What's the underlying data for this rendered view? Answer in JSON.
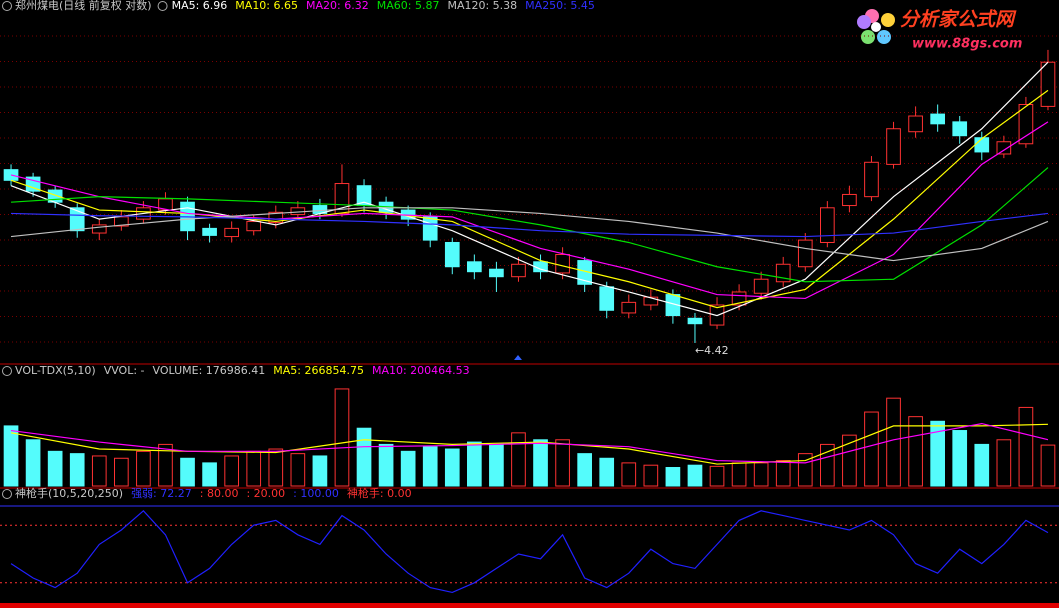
{
  "logo": {
    "title": "分析家公式网",
    "url": "www.88gs.com"
  },
  "chart_data": [
    {
      "type": "candlestick",
      "scale": "log",
      "ylim": [
        4.3,
        7.5
      ],
      "legend": [
        {
          "text": "郑州煤电(日线 前复权 对数)",
          "color": "#c8c8c8"
        },
        {
          "text": "MA5: 6.96",
          "color": "#ffffff"
        },
        {
          "text": "MA10: 6.65",
          "color": "#ffff00"
        },
        {
          "text": "MA20: 6.32",
          "color": "#ff00ff"
        },
        {
          "text": "MA60: 5.87",
          "color": "#00e000"
        },
        {
          "text": "MA120: 5.38",
          "color": "#c0c0c0"
        },
        {
          "text": "MA250: 5.45",
          "color": "#3030ff"
        }
      ],
      "up_color": "#ff3232",
      "down_color": "#54fcfc",
      "ohlc": [
        [
          5.85,
          5.9,
          5.7,
          5.75
        ],
        [
          5.78,
          5.82,
          5.6,
          5.65
        ],
        [
          5.66,
          5.7,
          5.5,
          5.55
        ],
        [
          5.5,
          5.54,
          5.24,
          5.3
        ],
        [
          5.28,
          5.4,
          5.22,
          5.35
        ],
        [
          5.34,
          5.48,
          5.3,
          5.42
        ],
        [
          5.4,
          5.56,
          5.36,
          5.5
        ],
        [
          5.48,
          5.64,
          5.44,
          5.58
        ],
        [
          5.55,
          5.6,
          5.22,
          5.3
        ],
        [
          5.32,
          5.36,
          5.2,
          5.26
        ],
        [
          5.25,
          5.38,
          5.2,
          5.32
        ],
        [
          5.3,
          5.44,
          5.26,
          5.38
        ],
        [
          5.37,
          5.52,
          5.32,
          5.46
        ],
        [
          5.44,
          5.56,
          5.4,
          5.5
        ],
        [
          5.52,
          5.58,
          5.4,
          5.45
        ],
        [
          5.45,
          5.9,
          5.42,
          5.72
        ],
        [
          5.7,
          5.76,
          5.46,
          5.52
        ],
        [
          5.55,
          5.6,
          5.4,
          5.46
        ],
        [
          5.48,
          5.52,
          5.34,
          5.4
        ],
        [
          5.42,
          5.46,
          5.16,
          5.22
        ],
        [
          5.2,
          5.24,
          4.94,
          5.0
        ],
        [
          5.04,
          5.1,
          4.9,
          4.96
        ],
        [
          4.98,
          5.04,
          4.8,
          4.92
        ],
        [
          4.92,
          5.08,
          4.88,
          5.02
        ],
        [
          5.04,
          5.1,
          4.9,
          4.96
        ],
        [
          4.95,
          5.16,
          4.9,
          5.1
        ],
        [
          5.05,
          5.08,
          4.8,
          4.86
        ],
        [
          4.84,
          4.88,
          4.6,
          4.66
        ],
        [
          4.64,
          4.78,
          4.6,
          4.72
        ],
        [
          4.7,
          4.82,
          4.66,
          4.76
        ],
        [
          4.78,
          4.82,
          4.56,
          4.62
        ],
        [
          4.6,
          4.64,
          4.42,
          4.56
        ],
        [
          4.55,
          4.76,
          4.52,
          4.7
        ],
        [
          4.7,
          4.86,
          4.66,
          4.8
        ],
        [
          4.79,
          4.96,
          4.74,
          4.9
        ],
        [
          4.88,
          5.08,
          4.84,
          5.02
        ],
        [
          5.0,
          5.28,
          4.96,
          5.22
        ],
        [
          5.2,
          5.56,
          5.16,
          5.5
        ],
        [
          5.52,
          5.7,
          5.46,
          5.62
        ],
        [
          5.6,
          5.98,
          5.56,
          5.92
        ],
        [
          5.9,
          6.32,
          5.86,
          6.25
        ],
        [
          6.22,
          6.48,
          6.16,
          6.38
        ],
        [
          6.4,
          6.5,
          6.22,
          6.3
        ],
        [
          6.32,
          6.38,
          6.1,
          6.18
        ],
        [
          6.16,
          6.22,
          5.94,
          6.02
        ],
        [
          6.0,
          6.18,
          5.96,
          6.12
        ],
        [
          6.1,
          6.58,
          6.06,
          6.5
        ],
        [
          6.48,
          7.1,
          6.44,
          6.96
        ]
      ],
      "line_x": [
        0,
        4,
        8,
        12,
        16,
        20,
        24,
        28,
        32,
        36,
        40,
        44,
        47
      ],
      "lines": [
        {
          "name": "MA5",
          "color": "#ffffff",
          "values": [
            5.7,
            5.4,
            5.5,
            5.35,
            5.55,
            5.3,
            4.98,
            4.8,
            4.62,
            4.9,
            5.6,
            6.25,
            6.96
          ]
        },
        {
          "name": "MA10",
          "color": "#ffff00",
          "values": [
            5.75,
            5.48,
            5.45,
            5.38,
            5.48,
            5.38,
            5.05,
            4.88,
            4.68,
            4.82,
            5.4,
            6.15,
            6.65
          ]
        },
        {
          "name": "MA20",
          "color": "#ff00ff",
          "values": [
            5.8,
            5.6,
            5.45,
            5.4,
            5.45,
            5.42,
            5.15,
            4.98,
            4.78,
            4.75,
            5.1,
            5.9,
            6.32
          ]
        },
        {
          "name": "MA60",
          "color": "#00e000",
          "values": [
            5.55,
            5.6,
            5.58,
            5.55,
            5.52,
            5.48,
            5.35,
            5.2,
            5.0,
            4.88,
            4.9,
            5.35,
            5.87
          ]
        },
        {
          "name": "MA120",
          "color": "#c0c0c0",
          "values": [
            5.25,
            5.33,
            5.4,
            5.45,
            5.5,
            5.5,
            5.45,
            5.38,
            5.28,
            5.15,
            5.05,
            5.15,
            5.38
          ]
        },
        {
          "name": "MA250",
          "color": "#3030ff",
          "values": [
            5.45,
            5.43,
            5.42,
            5.4,
            5.38,
            5.35,
            5.3,
            5.27,
            5.26,
            5.25,
            5.28,
            5.38,
            5.45
          ]
        }
      ],
      "annotation": {
        "text": "←4.42",
        "index": 31,
        "value": 4.42
      }
    },
    {
      "type": "bar",
      "ylim": [
        0,
        450000
      ],
      "legend": [
        {
          "text": "VOL-TDX(5,10)",
          "color": "#c8c8c8"
        },
        {
          "text": "VVOL: -",
          "color": "#c8c8c8"
        },
        {
          "text": "VOLUME: 176986.41",
          "color": "#c8c8c8"
        },
        {
          "text": "MA5: 266854.75",
          "color": "#ffff00"
        },
        {
          "text": "MA10: 200464.53",
          "color": "#ff00ff"
        }
      ],
      "values": [
        260000,
        200000,
        150000,
        140000,
        130000,
        120000,
        150000,
        180000,
        120000,
        100000,
        130000,
        150000,
        160000,
        140000,
        130000,
        420000,
        250000,
        180000,
        150000,
        170000,
        160000,
        190000,
        180000,
        230000,
        200000,
        200000,
        140000,
        120000,
        100000,
        90000,
        80000,
        90000,
        85000,
        100000,
        100000,
        110000,
        140000,
        180000,
        220000,
        320000,
        380000,
        300000,
        280000,
        240000,
        180000,
        200000,
        340000,
        176986.41
      ],
      "line_x": [
        0,
        4,
        8,
        12,
        16,
        20,
        24,
        28,
        32,
        36,
        40,
        44,
        47
      ],
      "lines": [
        {
          "name": "MA5",
          "color": "#ffff00",
          "values": [
            230000,
            160000,
            150000,
            145000,
            200000,
            180000,
            190000,
            160000,
            95000,
            110000,
            260000,
            260000,
            266854.75
          ]
        },
        {
          "name": "MA10",
          "color": "#ff00ff",
          "values": [
            240000,
            190000,
            150000,
            150000,
            170000,
            175000,
            185000,
            170000,
            110000,
            100000,
            200000,
            270000,
            200464.53
          ]
        }
      ]
    },
    {
      "type": "line",
      "ylim": [
        0,
        100
      ],
      "legend": [
        {
          "text": "神枪手(10,5,20,250)",
          "color": "#c8c8c8"
        },
        {
          "text": "强弱: 72.27",
          "color": "#3030ff"
        },
        {
          "text": ": 80.00",
          "color": "#ff3232"
        },
        {
          "text": ": 20.00",
          "color": "#ff3232"
        },
        {
          "text": ": 100.00",
          "color": "#3030ff"
        },
        {
          "text": "神枪手: 0.00",
          "color": "#ff3232"
        }
      ],
      "color": "#2020ff",
      "values": [
        40,
        25,
        15,
        30,
        60,
        75,
        95,
        70,
        20,
        35,
        60,
        80,
        85,
        70,
        60,
        90,
        75,
        50,
        30,
        15,
        10,
        20,
        35,
        50,
        45,
        70,
        25,
        15,
        30,
        55,
        40,
        35,
        60,
        85,
        95,
        90,
        85,
        80,
        75,
        85,
        70,
        40,
        30,
        55,
        40,
        60,
        85,
        72.27
      ],
      "ref_lines": [
        {
          "value": 80,
          "color": "#ff3232",
          "dash": true
        },
        {
          "value": 20,
          "color": "#ff3232",
          "dash": true
        },
        {
          "value": 100,
          "color": "#3030ff",
          "dash": false
        }
      ]
    }
  ]
}
